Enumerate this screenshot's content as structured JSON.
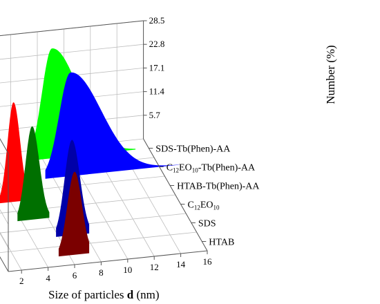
{
  "chart_data": {
    "type": "area",
    "title": "",
    "xlabel_prefix": "Size of particles ",
    "xlabel_symbol": "d",
    "xlabel_suffix": " (nm)",
    "zlabel": "Number (%)",
    "x_ticks": [
      "2",
      "4",
      "6",
      "8",
      "10",
      "12",
      "14",
      "16"
    ],
    "xlim": [
      1,
      16
    ],
    "z_ticks": [
      "5.7",
      "11.4",
      "17.1",
      "22.8",
      "28.5"
    ],
    "zlim": [
      0,
      28.5
    ],
    "grid": true,
    "series": [
      {
        "name": "HTAB",
        "name_parts": [
          "HTAB"
        ],
        "color": "#7b0000",
        "peak_x": 6.4,
        "peak_y": 20.0,
        "sigma_left": 0.55,
        "sigma_right": 0.55,
        "x_start": 5.2,
        "x_end": 7.5
      },
      {
        "name": "SDS",
        "name_parts": [
          "SDS"
        ],
        "color": "#0000a8",
        "peak_x": 7.0,
        "peak_y": 23.0,
        "sigma_left": 0.55,
        "sigma_right": 0.6,
        "x_start": 5.8,
        "x_end": 8.3
      },
      {
        "name": "C12EO10",
        "name_parts": [
          "C",
          "12",
          "EO",
          "10",
          ""
        ],
        "color": "#007000",
        "peak_x": 4.8,
        "peak_y": 22.5,
        "sigma_left": 0.5,
        "sigma_right": 0.55,
        "x_start": 3.7,
        "x_end": 6.1
      },
      {
        "name": "HTAB-Tb(Phen)-AA",
        "name_parts": [
          "HTAB-Tb(Phen)-AA"
        ],
        "color": "#ff0000",
        "peak_x": 4.2,
        "peak_y": 24.0,
        "sigma_left": 0.45,
        "sigma_right": 0.5,
        "x_start": 3.1,
        "x_end": 5.4
      },
      {
        "name": "C12EO10-Tb(Phen)-AA",
        "name_parts": [
          "C",
          "12",
          "EO",
          "10",
          "-Tb(Phen)-AA"
        ],
        "color": "#0000ff",
        "peak_x": 9.3,
        "peak_y": 25.0,
        "sigma_left": 0.85,
        "sigma_right": 2.3,
        "x_start": 7.4,
        "x_end": 17.5
      },
      {
        "name": "SDS-Tb(Phen)-AA",
        "name_parts": [
          "SDS-Tb(Phen)-AA"
        ],
        "color": "#00ff00",
        "peak_x": 8.7,
        "peak_y": 26.5,
        "sigma_left": 0.75,
        "sigma_right": 2.0,
        "x_start": 6.8,
        "x_end": 15.0
      }
    ]
  }
}
